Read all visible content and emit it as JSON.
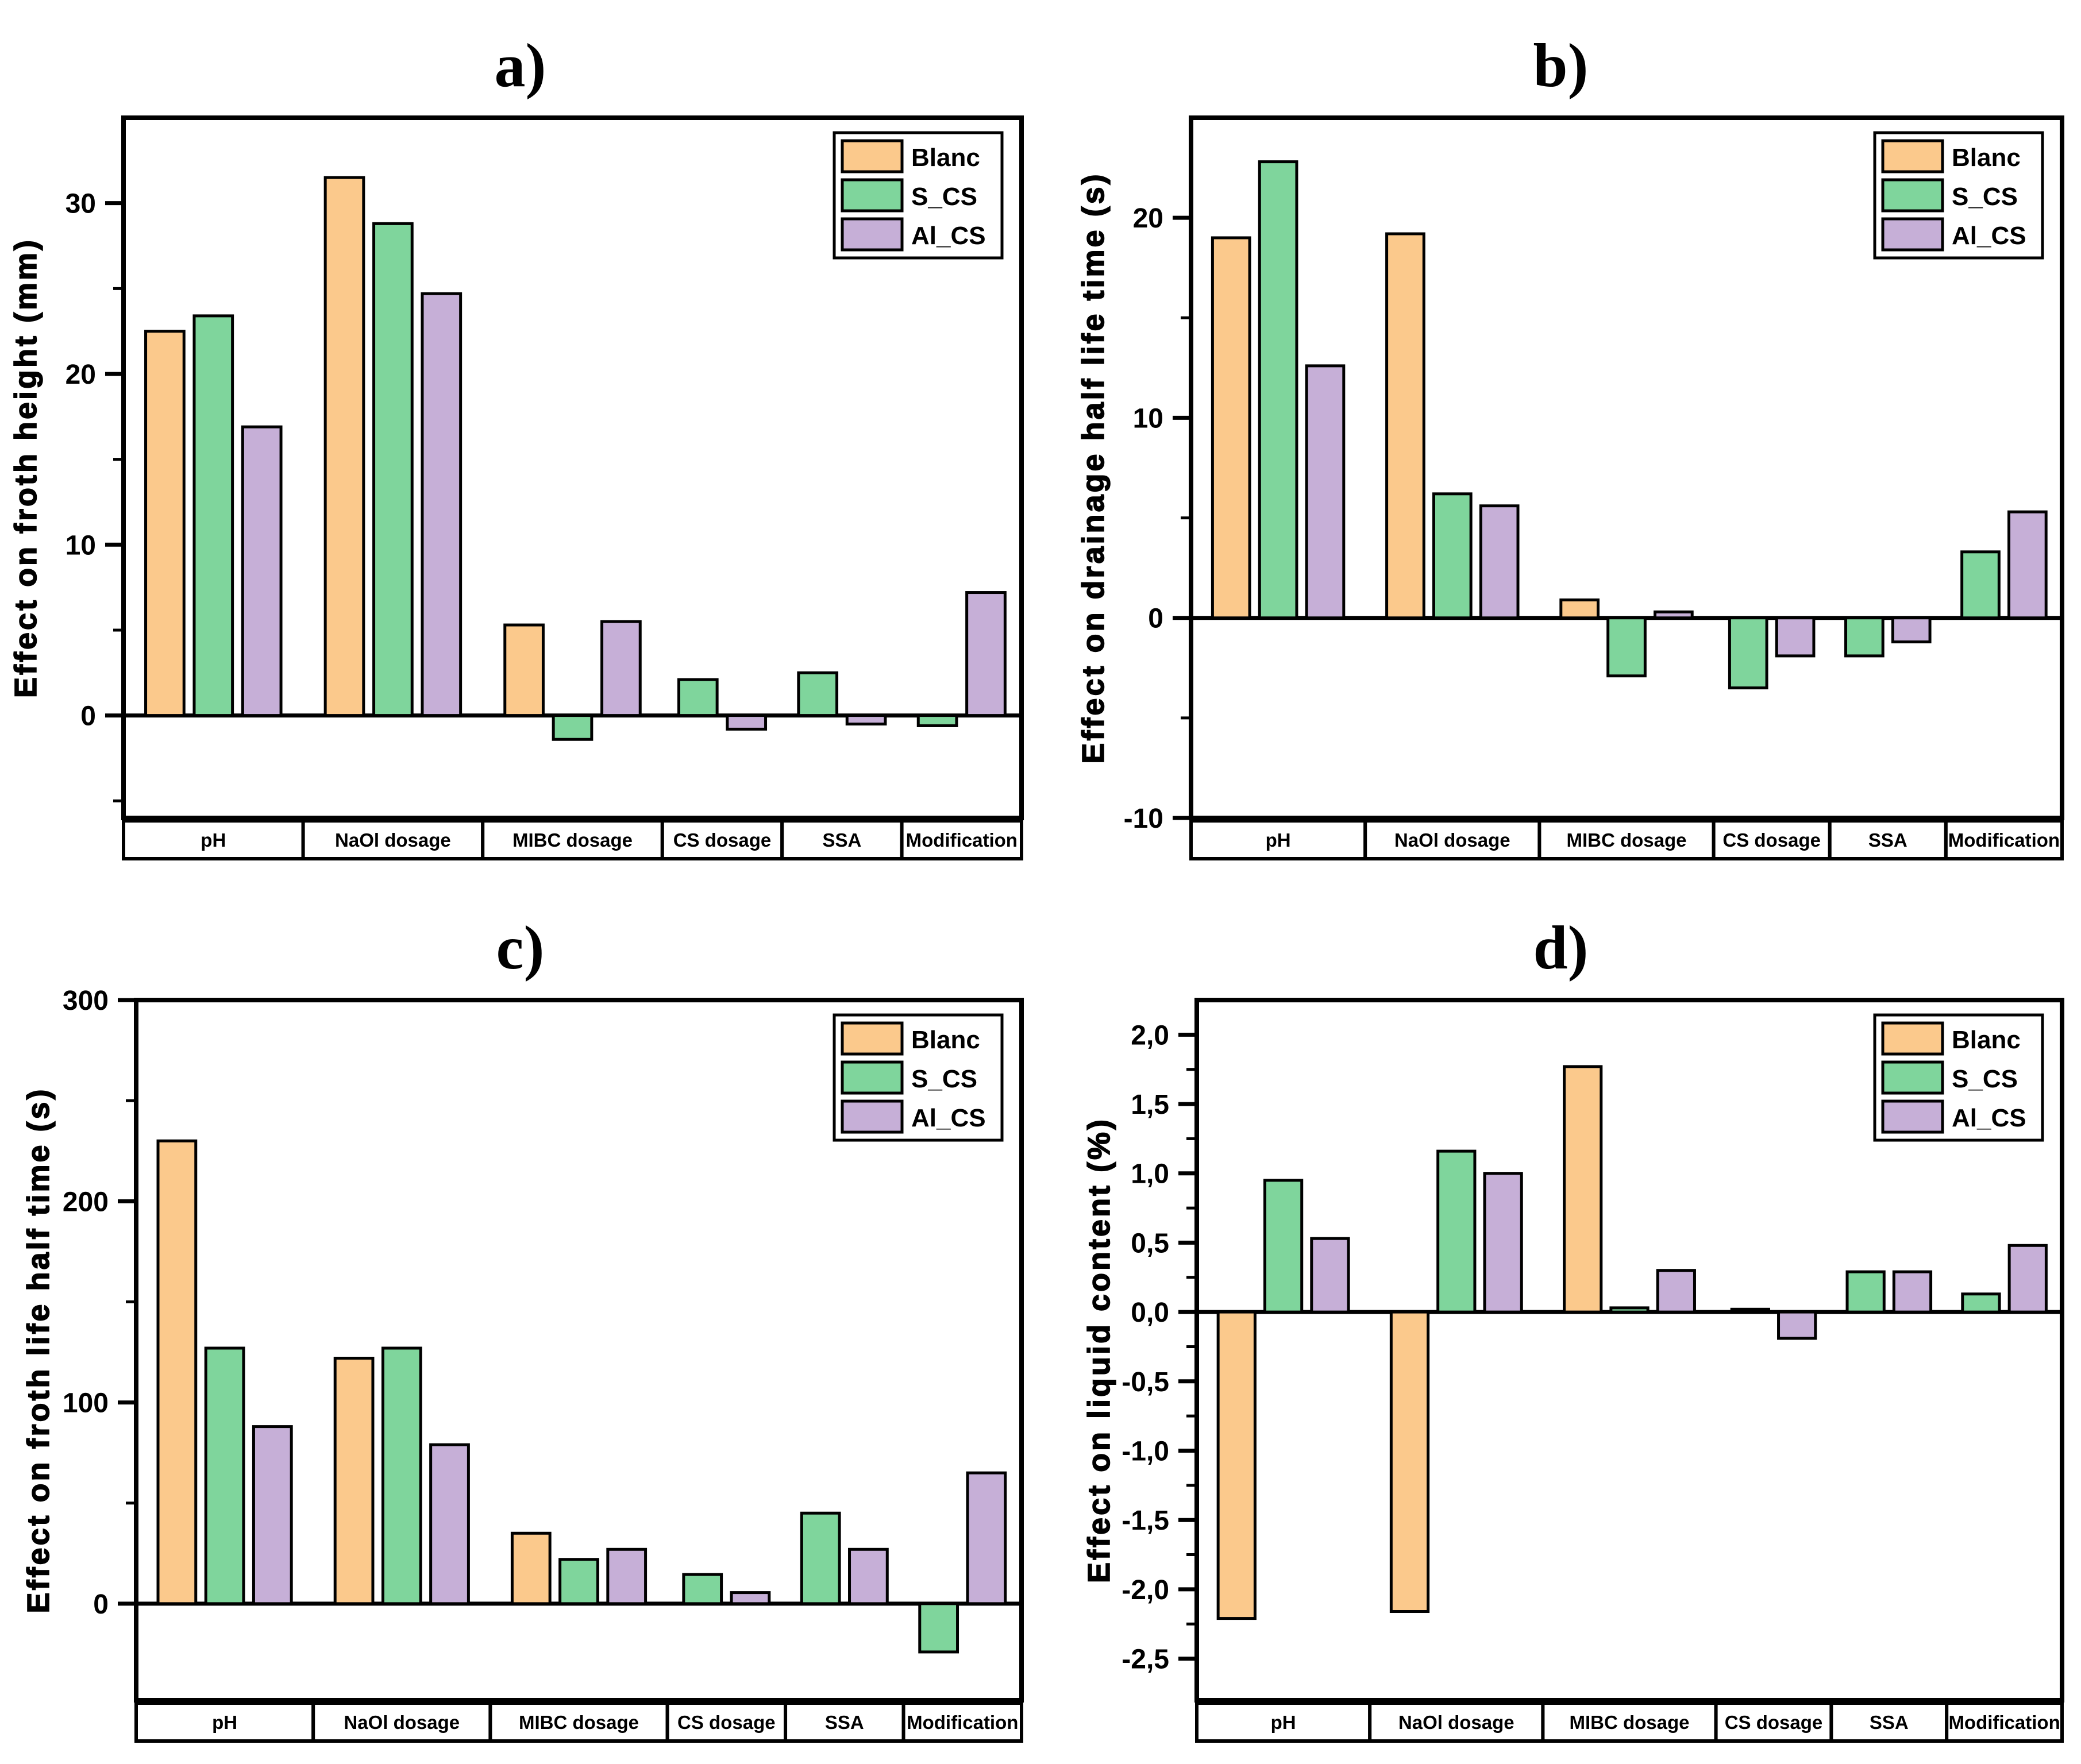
{
  "figure": {
    "background": "#ffffff",
    "axis_color": "#000000",
    "bar_outline_color": "#000000",
    "series": [
      {
        "name": "Blanc",
        "color": "#FBC98C"
      },
      {
        "name": "S_CS",
        "color": "#7FD59C"
      },
      {
        "name": "Al_CS",
        "color": "#C6AFD7"
      }
    ],
    "categories": [
      "pH",
      "NaOl dosage",
      "MIBC dosage",
      "CS dosage",
      "SSA",
      "Modification"
    ]
  },
  "chart_data": [
    {
      "id": "a",
      "type": "bar",
      "title": "a)",
      "ylabel": "Effect on froth height (mm)",
      "ylim": [
        -6,
        35
      ],
      "yticks": [
        0,
        10,
        20,
        30
      ],
      "ytick_labels": [
        "0",
        "10",
        "20",
        "30"
      ],
      "yticks_minor": [
        -5,
        5,
        15,
        25
      ],
      "grid": false,
      "legend_position": "top-right",
      "legend": [
        "Blanc",
        "S_CS",
        "Al_CS"
      ],
      "categories": [
        "pH",
        "NaOl dosage",
        "MIBC dosage",
        "CS dosage",
        "SSA",
        "Modification"
      ],
      "series": [
        {
          "name": "Blanc",
          "values": [
            22.5,
            31.5,
            5.3,
            null,
            null,
            null
          ]
        },
        {
          "name": "S_CS",
          "values": [
            23.4,
            28.8,
            -1.4,
            2.1,
            2.5,
            -0.6
          ]
        },
        {
          "name": "Al_CS",
          "values": [
            16.9,
            24.7,
            5.5,
            -0.8,
            -0.5,
            7.2
          ]
        }
      ]
    },
    {
      "id": "b",
      "type": "bar",
      "title": "b)",
      "ylabel": "Effect on drainage half life time (s)",
      "ylim": [
        -10,
        25
      ],
      "yticks": [
        -10,
        0,
        10,
        20
      ],
      "ytick_labels": [
        "-10",
        "0",
        "10",
        "20"
      ],
      "yticks_minor": [
        -5,
        5,
        15
      ],
      "grid": false,
      "legend_position": "top-right",
      "legend": [
        "Blanc",
        "S_CS",
        "Al_CS"
      ],
      "categories": [
        "pH",
        "NaOl dosage",
        "MIBC dosage",
        "CS dosage",
        "SSA",
        "Modification"
      ],
      "series": [
        {
          "name": "Blanc",
          "values": [
            19.0,
            19.2,
            0.9,
            null,
            null,
            null
          ]
        },
        {
          "name": "S_CS",
          "values": [
            22.8,
            6.2,
            -2.9,
            -3.5,
            -1.9,
            3.3
          ]
        },
        {
          "name": "Al_CS",
          "values": [
            12.6,
            5.6,
            0.3,
            -1.9,
            -1.2,
            5.3
          ]
        }
      ]
    },
    {
      "id": "c",
      "type": "bar",
      "title": "c)",
      "ylabel": "Effect on froth life half time (s)",
      "ylim": [
        -48,
        300
      ],
      "yticks": [
        0,
        100,
        200,
        300
      ],
      "ytick_labels": [
        "0",
        "100",
        "200",
        "300"
      ],
      "yticks_minor": [
        50,
        150,
        250
      ],
      "grid": false,
      "legend_position": "top-right",
      "legend": [
        "Blanc",
        "S_CS",
        "Al_CS"
      ],
      "categories": [
        "pH",
        "NaOl dosage",
        "MIBC dosage",
        "CS dosage",
        "SSA",
        "Modification"
      ],
      "series": [
        {
          "name": "Blanc",
          "values": [
            230,
            122,
            35,
            null,
            null,
            null
          ]
        },
        {
          "name": "S_CS",
          "values": [
            127,
            127,
            22,
            14.5,
            45,
            -24
          ]
        },
        {
          "name": "Al_CS",
          "values": [
            88,
            79,
            27,
            5.5,
            27,
            65
          ]
        }
      ]
    },
    {
      "id": "d",
      "type": "bar",
      "title": "d)",
      "ylabel": "Effect on liquid content (%)",
      "ylim": [
        -2.8,
        2.25
      ],
      "yticks": [
        -2.5,
        -2.0,
        -1.5,
        -1.0,
        -0.5,
        0.0,
        0.5,
        1.0,
        1.5,
        2.0
      ],
      "ytick_labels": [
        "-2,5",
        "-2,0",
        "-1,5",
        "-1,0",
        "-0,5",
        "0,0",
        "0,5",
        "1,0",
        "1,5",
        "2,0"
      ],
      "yticks_minor": [
        -2.25,
        -1.75,
        -1.25,
        -0.75,
        -0.25,
        0.25,
        0.75,
        1.25,
        1.75
      ],
      "grid": false,
      "legend_position": "top-right",
      "legend": [
        "Blanc",
        "S_CS",
        "Al_CS"
      ],
      "categories": [
        "pH",
        "NaOl dosage",
        "MIBC dosage",
        "CS dosage",
        "SSA",
        "Modification"
      ],
      "series": [
        {
          "name": "Blanc",
          "values": [
            -2.21,
            -2.16,
            1.77,
            0.02,
            null,
            null
          ]
        },
        {
          "name": "S_CS",
          "values": [
            0.95,
            1.16,
            0.03,
            null,
            0.29,
            0.13
          ]
        },
        {
          "name": "Al_CS",
          "values": [
            0.53,
            1.0,
            0.3,
            -0.19,
            0.29,
            0.48
          ]
        }
      ]
    }
  ]
}
